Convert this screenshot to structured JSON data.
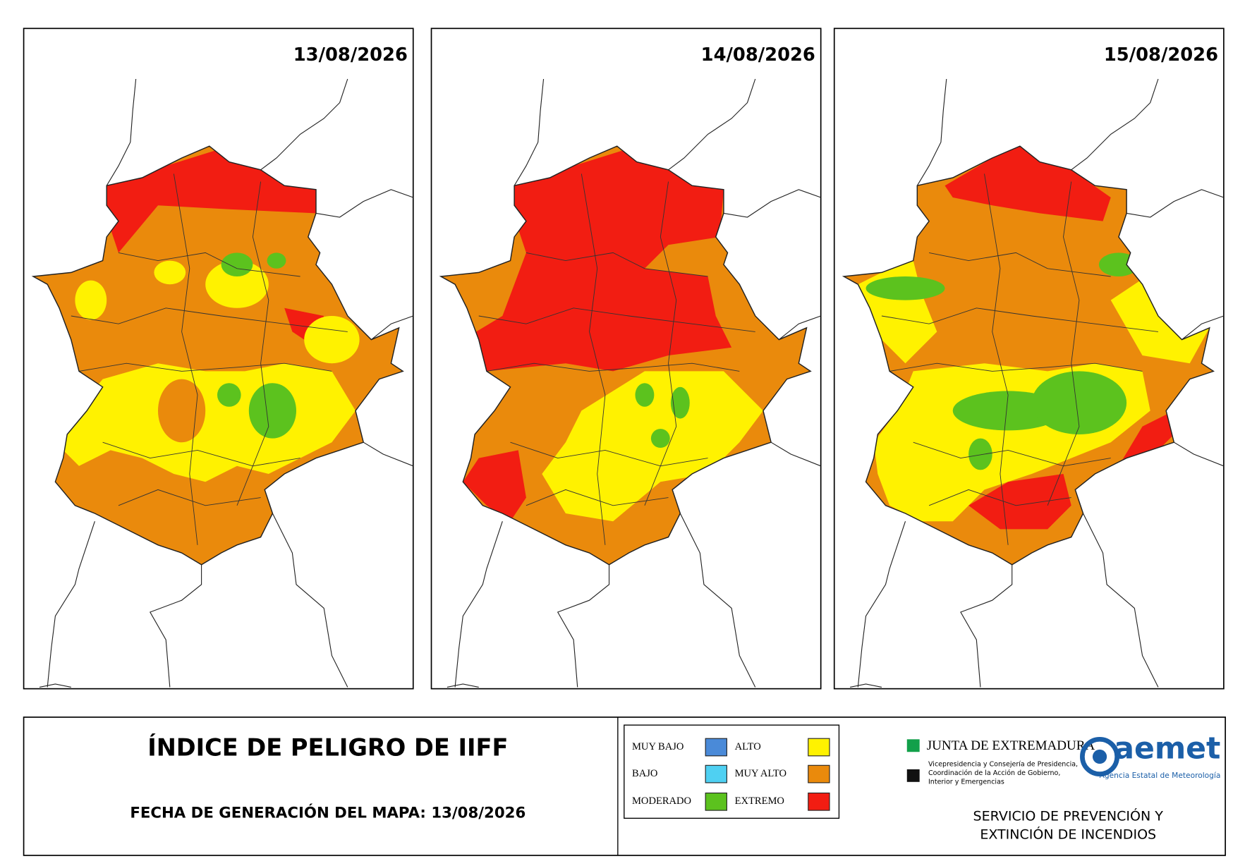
{
  "panels": [
    {
      "date": "13/08/2026"
    },
    {
      "date": "14/08/2026"
    },
    {
      "date": "15/08/2026"
    }
  ],
  "title": "ÍNDICE DE PELIGRO DE IIFF",
  "generation": "FECHA DE GENERACIÓN DEL MAPA: 13/08/2026",
  "legend": [
    {
      "label": "MUY BAJO",
      "color": "#4a8ad8"
    },
    {
      "label": "BAJO",
      "color": "#4fd0f2"
    },
    {
      "label": "MODERADO",
      "color": "#5cc21e"
    },
    {
      "label": "ALTO",
      "color": "#fff200"
    },
    {
      "label": "MUY ALTO",
      "color": "#ea8a0c"
    },
    {
      "label": "EXTREMO",
      "color": "#f21d12"
    }
  ],
  "logos": {
    "junta": "JUNTA DE EXTREMADURA",
    "junta_sub": [
      "Vicepresidencia y Consejería de Presidencia,",
      "Coordinación de la Acción de Gobierno,",
      "Interior y Emergencias"
    ],
    "aemet": "aemet",
    "aemet_sub": "Agencia Estatal de Meteorología"
  },
  "service": [
    "SERVICIO DE PREVENCIÓN Y",
    "EXTINCIÓN DE INCENDIOS"
  ]
}
